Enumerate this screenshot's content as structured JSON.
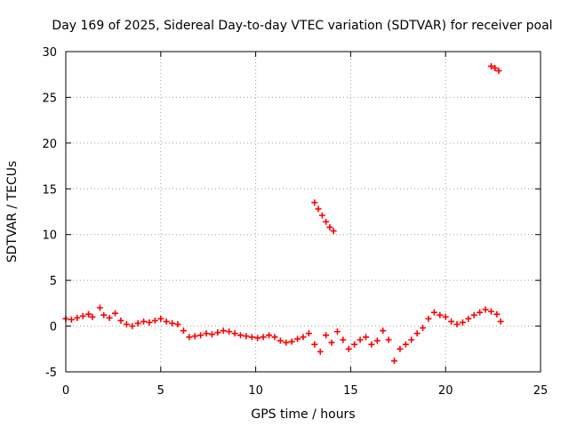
{
  "chart_data": {
    "type": "scatter",
    "title": "Day 169 of 2025, Sidereal Day-to-day VTEC variation (SDTVAR) for receiver poal",
    "xlabel": "GPS time / hours",
    "ylabel": "SDTVAR / TECUs",
    "xlim": [
      0,
      25
    ],
    "ylim": [
      -5,
      30
    ],
    "xticks": [
      0,
      5,
      10,
      15,
      20,
      25
    ],
    "yticks": [
      -5,
      0,
      5,
      10,
      15,
      20,
      25,
      30
    ],
    "xtick_labels": [
      "0",
      "5",
      "10",
      "15",
      "20",
      "25"
    ],
    "ytick_labels": [
      "-5",
      "0",
      "5",
      "10",
      "15",
      "20",
      "25",
      "30"
    ],
    "grid": true,
    "marker": "+",
    "series": [
      {
        "name": "SDTVAR",
        "color": "#ff0000",
        "x": [
          0.0,
          0.3,
          0.6,
          0.9,
          1.2,
          1.4,
          1.8,
          2.0,
          2.3,
          2.6,
          2.9,
          3.2,
          3.5,
          3.8,
          4.1,
          4.4,
          4.7,
          5.0,
          5.3,
          5.6,
          5.9,
          6.2,
          6.5,
          6.8,
          7.1,
          7.4,
          7.7,
          8.0,
          8.3,
          8.6,
          8.9,
          9.2,
          9.5,
          9.8,
          10.1,
          10.4,
          10.7,
          11.0,
          11.3,
          11.6,
          11.9,
          12.2,
          12.5,
          12.8,
          13.1,
          13.4,
          13.7,
          14.0,
          14.3,
          14.6,
          14.9,
          15.2,
          15.5,
          15.8,
          16.1,
          16.4,
          16.7,
          17.0,
          17.3,
          17.6,
          17.9,
          18.2,
          18.5,
          18.8,
          19.1,
          19.4,
          19.7,
          20.0,
          20.3,
          20.6,
          20.9,
          21.2,
          21.5,
          21.8,
          22.1,
          22.4,
          22.7,
          22.9,
          13.1,
          13.3,
          13.5,
          13.7,
          13.9,
          14.1,
          22.4,
          22.6,
          22.8
        ],
        "y": [
          0.8,
          0.7,
          0.9,
          1.1,
          1.3,
          1.0,
          2.0,
          1.2,
          0.9,
          1.4,
          0.6,
          0.2,
          0.0,
          0.3,
          0.5,
          0.4,
          0.6,
          0.8,
          0.5,
          0.3,
          0.2,
          -0.5,
          -1.2,
          -1.1,
          -1.0,
          -0.8,
          -0.9,
          -0.7,
          -0.5,
          -0.6,
          -0.8,
          -1.0,
          -1.1,
          -1.2,
          -1.3,
          -1.2,
          -1.0,
          -1.2,
          -1.6,
          -1.8,
          -1.7,
          -1.4,
          -1.2,
          -0.8,
          -2.0,
          -2.8,
          -1.0,
          -1.8,
          -0.6,
          -1.5,
          -2.5,
          -2.0,
          -1.5,
          -1.2,
          -2.0,
          -1.6,
          -0.5,
          -1.5,
          -3.8,
          -2.5,
          -2.0,
          -1.5,
          -0.8,
          -0.2,
          0.8,
          1.5,
          1.2,
          1.0,
          0.5,
          0.2,
          0.4,
          0.8,
          1.2,
          1.5,
          1.8,
          1.6,
          1.3,
          0.5,
          13.5,
          12.8,
          12.1,
          11.4,
          10.8,
          10.4,
          28.4,
          28.2,
          27.9
        ]
      }
    ]
  }
}
